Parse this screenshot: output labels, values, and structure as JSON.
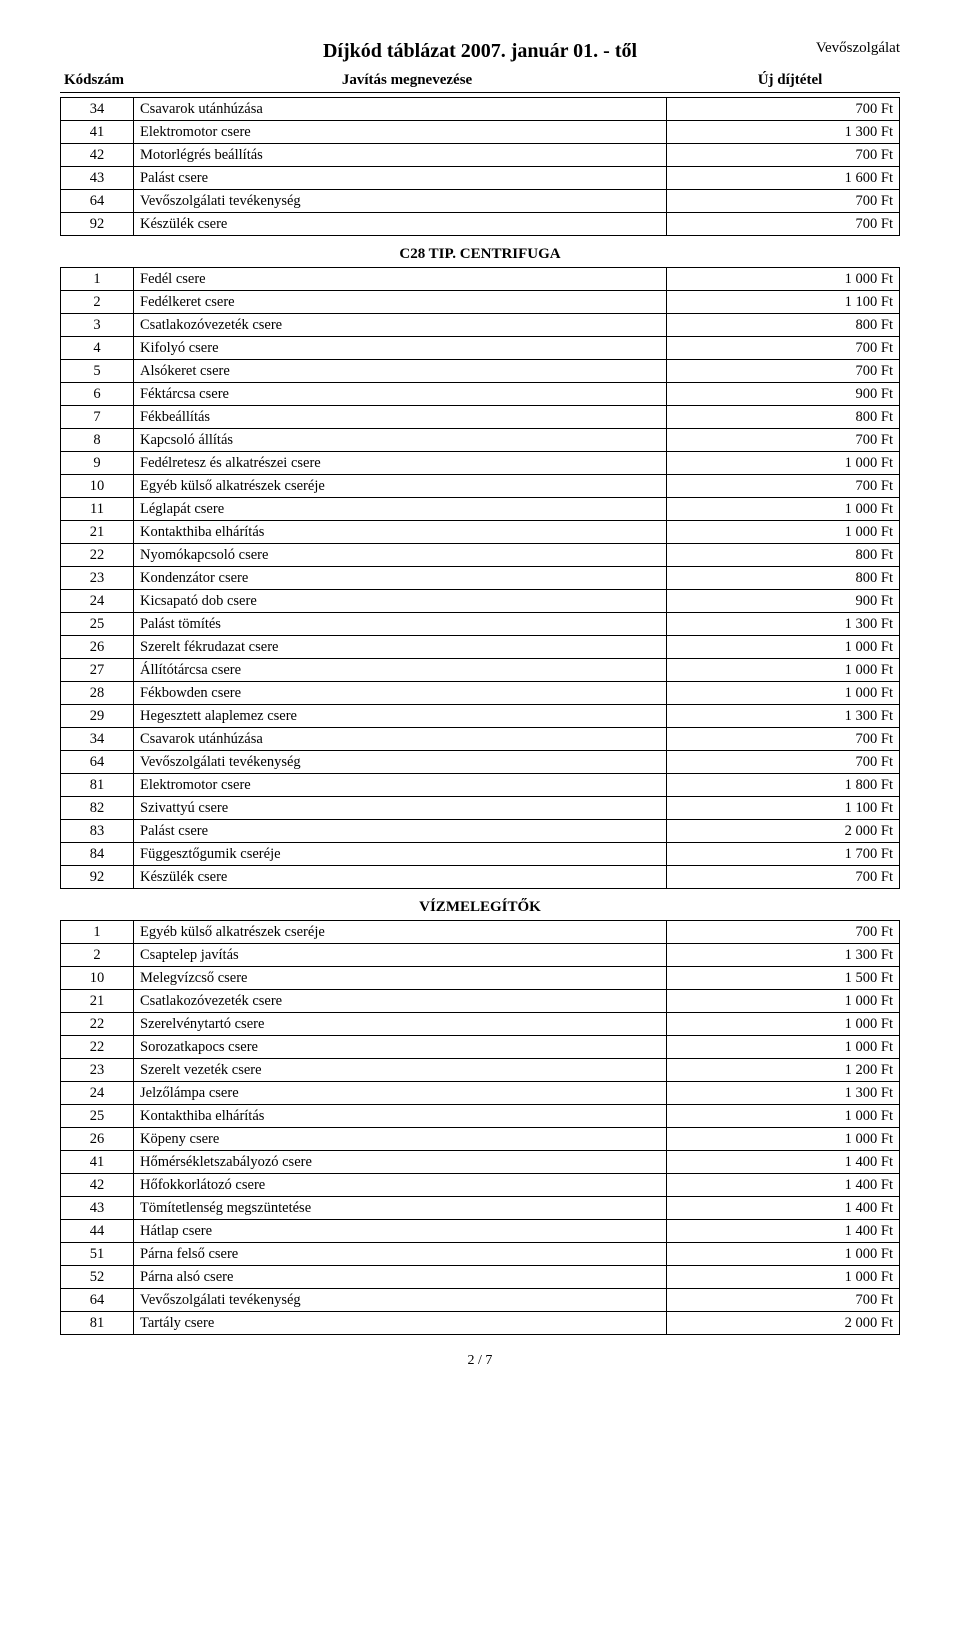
{
  "page": {
    "title": "Díjkód táblázat 2007. január 01. - től",
    "right_label": "Vevőszolgálat",
    "headers": {
      "code": "Kódszám",
      "desc": "Javítás megnevezése",
      "price": "Új díjtétel"
    },
    "pagenum": "2 / 7"
  },
  "sections": [
    {
      "title": null,
      "rows": [
        {
          "code": "34",
          "desc": "Csavarok utánhúzása",
          "price": "700 Ft"
        },
        {
          "code": "41",
          "desc": "Elektromotor csere",
          "price": "1 300 Ft"
        },
        {
          "code": "42",
          "desc": "Motorlégrés beállítás",
          "price": "700 Ft"
        },
        {
          "code": "43",
          "desc": "Palást csere",
          "price": "1 600 Ft"
        },
        {
          "code": "64",
          "desc": "Vevőszolgálati tevékenység",
          "price": "700 Ft"
        },
        {
          "code": "92",
          "desc": "Készülék csere",
          "price": "700 Ft"
        }
      ]
    },
    {
      "title": "C28 TIP. CENTRIFUGA",
      "rows": [
        {
          "code": "1",
          "desc": "Fedél csere",
          "price": "1 000 Ft"
        },
        {
          "code": "2",
          "desc": "Fedélkeret csere",
          "price": "1 100 Ft"
        },
        {
          "code": "3",
          "desc": "Csatlakozóvezeték csere",
          "price": "800 Ft"
        },
        {
          "code": "4",
          "desc": "Kifolyó csere",
          "price": "700 Ft"
        },
        {
          "code": "5",
          "desc": "Alsókeret csere",
          "price": "700 Ft"
        },
        {
          "code": "6",
          "desc": "Féktárcsa csere",
          "price": "900 Ft"
        },
        {
          "code": "7",
          "desc": "Fékbeállítás",
          "price": "800 Ft"
        },
        {
          "code": "8",
          "desc": "Kapcsoló állítás",
          "price": "700 Ft"
        },
        {
          "code": "9",
          "desc": "Fedélretesz és alkatrészei csere",
          "price": "1 000 Ft"
        },
        {
          "code": "10",
          "desc": "Egyéb külső alkatrészek cseréje",
          "price": "700 Ft"
        },
        {
          "code": "11",
          "desc": "Léglapát csere",
          "price": "1 000 Ft"
        },
        {
          "code": "21",
          "desc": "Kontakthiba elhárítás",
          "price": "1 000 Ft"
        },
        {
          "code": "22",
          "desc": "Nyomókapcsoló csere",
          "price": "800 Ft"
        },
        {
          "code": "23",
          "desc": "Kondenzátor csere",
          "price": "800 Ft"
        },
        {
          "code": "24",
          "desc": "Kicsapató dob csere",
          "price": "900 Ft"
        },
        {
          "code": "25",
          "desc": "Palást tömítés",
          "price": "1 300 Ft"
        },
        {
          "code": "26",
          "desc": "Szerelt fékrudazat csere",
          "price": "1 000 Ft"
        },
        {
          "code": "27",
          "desc": "Állítótárcsa csere",
          "price": "1 000 Ft"
        },
        {
          "code": "28",
          "desc": "Fékbowden csere",
          "price": "1 000 Ft"
        },
        {
          "code": "29",
          "desc": "Hegesztett alaplemez csere",
          "price": "1 300 Ft"
        },
        {
          "code": "34",
          "desc": "Csavarok utánhúzása",
          "price": "700 Ft"
        },
        {
          "code": "64",
          "desc": "Vevőszolgálati tevékenység",
          "price": "700 Ft"
        },
        {
          "code": "81",
          "desc": "Elektromotor csere",
          "price": "1 800 Ft"
        },
        {
          "code": "82",
          "desc": "Szivattyú csere",
          "price": "1 100 Ft"
        },
        {
          "code": "83",
          "desc": "Palást csere",
          "price": "2 000 Ft"
        },
        {
          "code": "84",
          "desc": "Függesztőgumik cseréje",
          "price": "1 700 Ft"
        },
        {
          "code": "92",
          "desc": "Készülék csere",
          "price": "700 Ft"
        }
      ]
    },
    {
      "title": "VÍZMELEGÍTŐK",
      "rows": [
        {
          "code": "1",
          "desc": "Egyéb külső alkatrészek cseréje",
          "price": "700 Ft"
        },
        {
          "code": "2",
          "desc": "Csaptelep javítás",
          "price": "1 300 Ft"
        },
        {
          "code": "10",
          "desc": "Melegvízcső csere",
          "price": "1 500 Ft"
        },
        {
          "code": "21",
          "desc": "Csatlakozóvezeték csere",
          "price": "1 000 Ft"
        },
        {
          "code": "22",
          "desc": "Szerelvénytartó csere",
          "price": "1 000 Ft"
        },
        {
          "code": "22",
          "desc": "Sorozatkapocs csere",
          "price": "1 000 Ft"
        },
        {
          "code": "23",
          "desc": "Szerelt vezeték csere",
          "price": "1 200 Ft"
        },
        {
          "code": "24",
          "desc": "Jelzőlámpa csere",
          "price": "1 300 Ft"
        },
        {
          "code": "25",
          "desc": "Kontakthiba elhárítás",
          "price": "1 000 Ft"
        },
        {
          "code": "26",
          "desc": "Köpeny csere",
          "price": "1 000 Ft"
        },
        {
          "code": "41",
          "desc": "Hőmérsékletszabályozó csere",
          "price": "1 400 Ft"
        },
        {
          "code": "42",
          "desc": "Hőfokkorlátozó csere",
          "price": "1 400 Ft"
        },
        {
          "code": "43",
          "desc": "Tömítetlenség megszüntetése",
          "price": "1 400 Ft"
        },
        {
          "code": "44",
          "desc": "Hátlap csere",
          "price": "1 400 Ft"
        },
        {
          "code": "51",
          "desc": "Párna felső csere",
          "price": "1 000 Ft"
        },
        {
          "code": "52",
          "desc": "Párna alsó csere",
          "price": "1 000 Ft"
        },
        {
          "code": "64",
          "desc": "Vevőszolgálati tevékenység",
          "price": "700 Ft"
        },
        {
          "code": "81",
          "desc": "Tartály csere",
          "price": "2 000 Ft"
        }
      ]
    }
  ]
}
